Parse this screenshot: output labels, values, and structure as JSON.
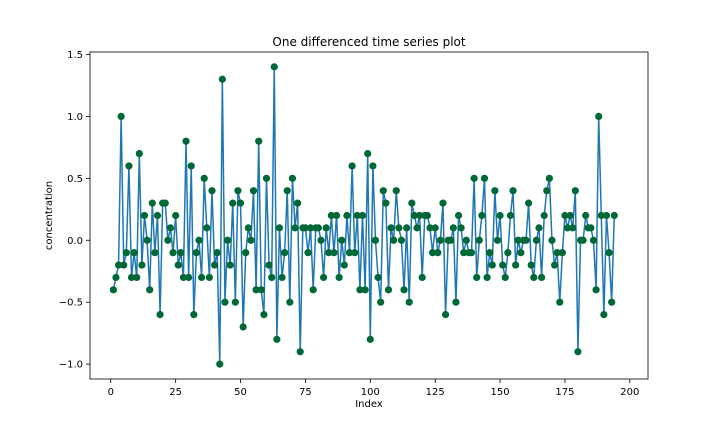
{
  "chart_data": {
    "type": "line",
    "title": "One differenced time series plot",
    "xlabel": "Index",
    "ylabel": "concentration",
    "xlim": [
      -8,
      207
    ],
    "ylim": [
      -1.12,
      1.52
    ],
    "xticks": [
      0,
      25,
      50,
      75,
      100,
      125,
      150,
      175,
      200
    ],
    "yticks": [
      -1.0,
      -0.5,
      0.0,
      0.5,
      1.0,
      1.5
    ],
    "xtick_labels": [
      "0",
      "25",
      "50",
      "75",
      "100",
      "125",
      "150",
      "175",
      "200"
    ],
    "ytick_labels": [
      "−1.0",
      "−0.5",
      "0.0",
      "0.5",
      "1.0",
      "1.5"
    ],
    "grid": false,
    "line_color": "#1f77b4",
    "marker_color": "#006837",
    "x_start": 1,
    "values": [
      -0.4,
      -0.3,
      -0.2,
      1.0,
      -0.2,
      -0.1,
      0.6,
      -0.3,
      -0.1,
      -0.3,
      0.7,
      -0.2,
      0.2,
      0.0,
      -0.4,
      0.3,
      -0.1,
      0.2,
      -0.6,
      0.3,
      0.3,
      0.0,
      0.1,
      -0.1,
      0.2,
      -0.2,
      -0.1,
      -0.3,
      0.8,
      -0.3,
      0.6,
      -0.6,
      -0.1,
      0.0,
      -0.3,
      0.5,
      0.1,
      -0.3,
      0.4,
      -0.2,
      -0.1,
      -1.0,
      1.3,
      -0.5,
      0.0,
      -0.2,
      0.3,
      -0.5,
      0.4,
      0.3,
      -0.7,
      -0.1,
      0.1,
      0.0,
      0.4,
      -0.4,
      0.8,
      -0.4,
      -0.6,
      0.5,
      -0.2,
      -0.3,
      1.4,
      -0.8,
      0.1,
      -0.3,
      -0.1,
      0.4,
      -0.5,
      0.5,
      0.1,
      0.3,
      -0.9,
      0.1,
      0.1,
      -0.1,
      0.1,
      -0.4,
      0.1,
      0.1,
      0.0,
      -0.3,
      0.1,
      -0.1,
      0.2,
      -0.1,
      0.2,
      -0.3,
      0.0,
      -0.2,
      0.2,
      -0.1,
      0.6,
      -0.1,
      0.2,
      -0.4,
      0.2,
      -0.4,
      0.7,
      -0.8,
      0.6,
      0.0,
      -0.3,
      -0.5,
      0.4,
      0.3,
      -0.4,
      0.1,
      0.0,
      0.4,
      0.1,
      0.0,
      -0.4,
      0.1,
      -0.5,
      0.3,
      0.2,
      0.1,
      0.2,
      -0.3,
      0.2,
      0.2,
      0.1,
      -0.1,
      0.1,
      -0.1,
      0.0,
      0.3,
      -0.6,
      0.0,
      0.0,
      0.1,
      -0.5,
      0.2,
      0.1,
      -0.1,
      0.0,
      -0.1,
      -0.1,
      0.5,
      -0.3,
      0.0,
      0.2,
      0.5,
      -0.3,
      -0.1,
      -0.2,
      0.4,
      0.0,
      0.2,
      -0.2,
      -0.3,
      -0.1,
      0.2,
      0.4,
      -0.2,
      0.0,
      -0.1,
      0.0,
      0.0,
      0.3,
      -0.2,
      -0.3,
      0.0,
      0.1,
      -0.3,
      0.2,
      0.4,
      0.5,
      0.0,
      -0.2,
      -0.1,
      -0.5,
      -0.1,
      0.2,
      0.1,
      0.2,
      0.1,
      0.4,
      -0.9,
      0.0,
      0.0,
      0.2,
      0.1,
      0.1,
      0.0,
      -0.4,
      1.0,
      0.2,
      -0.6,
      0.2,
      -0.1,
      -0.5,
      0.2
    ]
  }
}
